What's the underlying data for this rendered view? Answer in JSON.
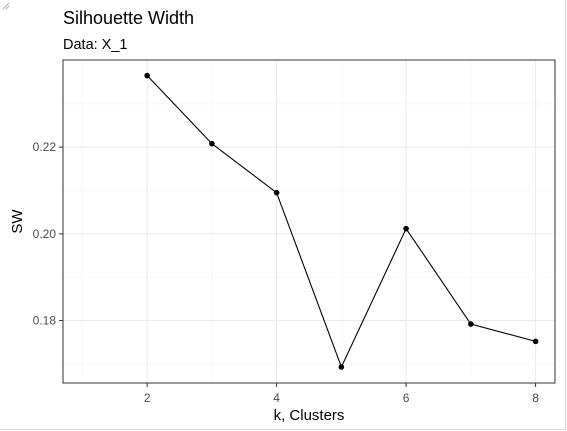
{
  "chart_data": {
    "type": "line",
    "title": "Silhouette Width",
    "subtitle": "Data: X_1",
    "xlabel": "k, Clusters",
    "ylabel": "SW",
    "x": [
      2,
      3,
      4,
      5,
      6,
      7,
      8
    ],
    "series": [
      {
        "values": [
          0.2365,
          0.2208,
          0.2095,
          0.1693,
          0.2012,
          0.1792,
          0.1752
        ]
      }
    ],
    "xlim": [
      0.7,
      8.3
    ],
    "ylim": [
      0.1656,
      0.2401
    ],
    "x_ticks": [
      2,
      4,
      6,
      8
    ],
    "x_tick_labels": [
      "2",
      "4",
      "6",
      "8"
    ],
    "y_ticks": [
      0.18,
      0.2,
      0.22
    ],
    "y_tick_labels": [
      "0.18",
      "0.20",
      "0.22"
    ],
    "grid": true,
    "colors": {
      "line": "#000000",
      "point": "#000000",
      "grid_major": "#ebebeb",
      "grid_minor": "#f5f5f5",
      "panel_border": "#333333"
    }
  }
}
